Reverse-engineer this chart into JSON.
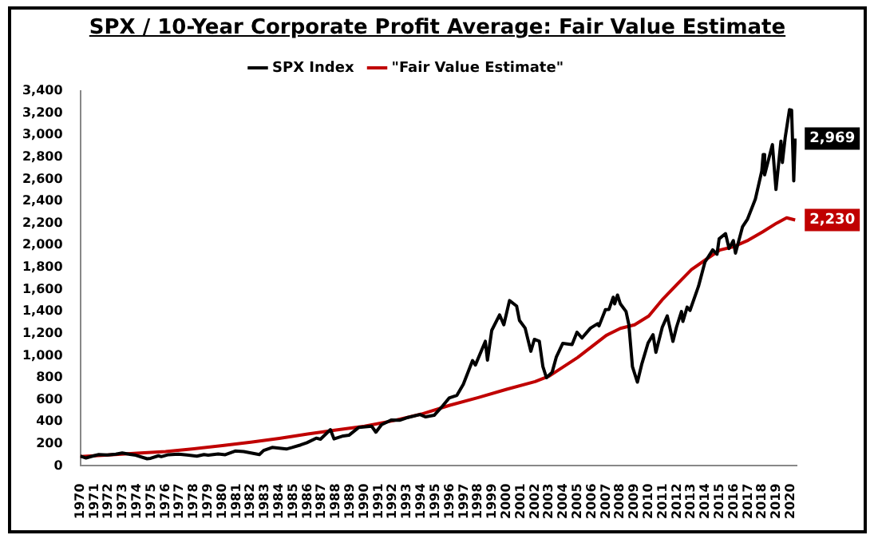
{
  "chart_data": {
    "type": "line",
    "title": "SPX / 10-Year Corporate Profit Average: Fair Value Estimate",
    "series": [
      {
        "name": "SPX Index",
        "color": "#000000",
        "x": [
          1970.0,
          1970.4,
          1970.9,
          1971.3,
          1971.9,
          1972.5,
          1972.95,
          1973.5,
          1973.9,
          1974.7,
          1974.95,
          1975.5,
          1975.7,
          1976.2,
          1976.9,
          1977.5,
          1978.2,
          1978.7,
          1979.0,
          1979.7,
          1980.2,
          1980.9,
          1981.5,
          1982.6,
          1982.9,
          1983.5,
          1984.5,
          1984.9,
          1985.5,
          1985.95,
          1986.6,
          1986.9,
          1987.6,
          1987.85,
          1988.5,
          1988.9,
          1989.6,
          1989.9,
          1990.5,
          1990.8,
          1991.2,
          1991.9,
          1992.5,
          1992.95,
          1993.9,
          1994.3,
          1994.9,
          1995.5,
          1995.95,
          1996.5,
          1996.95,
          1997.6,
          1997.8,
          1998.5,
          1998.65,
          1998.95,
          1999.5,
          1999.8,
          2000.2,
          2000.7,
          2000.9,
          2001.3,
          2001.7,
          2001.95,
          2002.3,
          2002.55,
          2002.8,
          2003.2,
          2003.5,
          2003.95,
          2004.6,
          2004.95,
          2005.3,
          2005.9,
          2006.4,
          2006.5,
          2006.95,
          2007.2,
          2007.5,
          2007.6,
          2007.8,
          2008.0,
          2008.4,
          2008.6,
          2008.85,
          2009.2,
          2009.5,
          2009.95,
          2010.3,
          2010.5,
          2010.95,
          2011.3,
          2011.7,
          2011.95,
          2012.3,
          2012.4,
          2012.7,
          2012.9,
          2013.5,
          2013.95,
          2014.5,
          2014.8,
          2014.95,
          2015.4,
          2015.65,
          2015.95,
          2016.1,
          2016.6,
          2016.95,
          2017.5,
          2017.95,
          2018.05,
          2018.15,
          2018.7,
          2018.95,
          2019.3,
          2019.4,
          2019.6,
          2019.9,
          2020.05,
          2020.2,
          2020.3
        ],
        "values": [
          90,
          72,
          90,
          103,
          100,
          107,
          118,
          105,
          97,
          65,
          69,
          92,
          84,
          102,
          107,
          99,
          88,
          103,
          97,
          108,
          102,
          135,
          130,
          103,
          140,
          168,
          153,
          167,
          190,
          211,
          252,
          242,
          329,
          245,
          272,
          278,
          350,
          353,
          360,
          306,
          375,
          417,
          415,
          436,
          466,
          445,
          459,
          545,
          616,
          640,
          741,
          955,
          915,
          1130,
          960,
          1229,
          1370,
          1280,
          1500,
          1450,
          1320,
          1250,
          1040,
          1148,
          1130,
          900,
          800,
          850,
          990,
          1112,
          1100,
          1212,
          1160,
          1250,
          1290,
          1270,
          1418,
          1420,
          1530,
          1470,
          1550,
          1470,
          1400,
          1280,
          900,
          760,
          920,
          1115,
          1190,
          1030,
          1258,
          1360,
          1130,
          1258,
          1400,
          1310,
          1440,
          1410,
          1630,
          1848,
          1960,
          1920,
          2059,
          2107,
          1972,
          2044,
          1930,
          2170,
          2239,
          2420,
          2674,
          2824,
          2640,
          2914,
          2507,
          2946,
          2752,
          2980,
          3231,
          3226,
          2585,
          2969
        ]
      },
      {
        "name": "\"Fair Value Estimate\"",
        "color": "#c00000",
        "x": [
          1970,
          1972,
          1974,
          1976,
          1978,
          1980,
          1982,
          1984,
          1986,
          1988,
          1990,
          1992,
          1994,
          1996,
          1998,
          2000,
          2002,
          2003,
          2005,
          2007,
          2008,
          2009,
          2010,
          2011,
          2012,
          2013,
          2014,
          2015,
          2016,
          2017,
          2018,
          2019,
          2019.7,
          2020.3
        ],
        "values": [
          85,
          100,
          115,
          130,
          155,
          185,
          215,
          250,
          290,
          325,
          360,
          410,
          470,
          550,
          620,
          695,
          765,
          815,
          984,
          1183,
          1247,
          1280,
          1360,
          1515,
          1648,
          1780,
          1870,
          1958,
          1990,
          2047,
          2122,
          2202,
          2250,
          2230
        ]
      }
    ],
    "xlim": [
      1970,
      2020.4
    ],
    "xticks": [
      1970,
      1971,
      1972,
      1973,
      1974,
      1975,
      1976,
      1977,
      1978,
      1979,
      1980,
      1981,
      1982,
      1983,
      1984,
      1985,
      1986,
      1987,
      1988,
      1989,
      1990,
      1991,
      1992,
      1993,
      1994,
      1995,
      1996,
      1997,
      1998,
      1999,
      2000,
      2001,
      2002,
      2003,
      2004,
      2005,
      2006,
      2007,
      2008,
      2009,
      2010,
      2011,
      2012,
      2013,
      2014,
      2015,
      2016,
      2017,
      2018,
      2019,
      2020
    ],
    "ylim": [
      0,
      3400
    ],
    "yticks": [
      0,
      200,
      400,
      600,
      800,
      {
        "value": 1000,
        "label": "1,000"
      },
      {
        "value": 1200,
        "label": "1,200"
      },
      {
        "value": 1400,
        "label": "1,400"
      },
      {
        "value": 1600,
        "label": "1,600"
      },
      {
        "value": 1800,
        "label": "1,800"
      },
      {
        "value": 2000,
        "label": "2,000"
      },
      {
        "value": 2200,
        "label": "2,200"
      },
      {
        "value": 2400,
        "label": "2,400"
      },
      {
        "value": 2600,
        "label": "2,600"
      },
      {
        "value": 2800,
        "label": "2,800"
      },
      {
        "value": 3000,
        "label": "3,000"
      },
      {
        "value": 3200,
        "label": "3,200"
      },
      {
        "value": 3400,
        "label": "3,400"
      }
    ],
    "annotations": [
      {
        "text": "2,969",
        "x": 2020.3,
        "y": 2969
      },
      {
        "text": "2,230",
        "x": 2020.3,
        "y": 2230
      }
    ],
    "grid": false,
    "legend": "top",
    "marker": "none",
    "line_style": "solid"
  }
}
